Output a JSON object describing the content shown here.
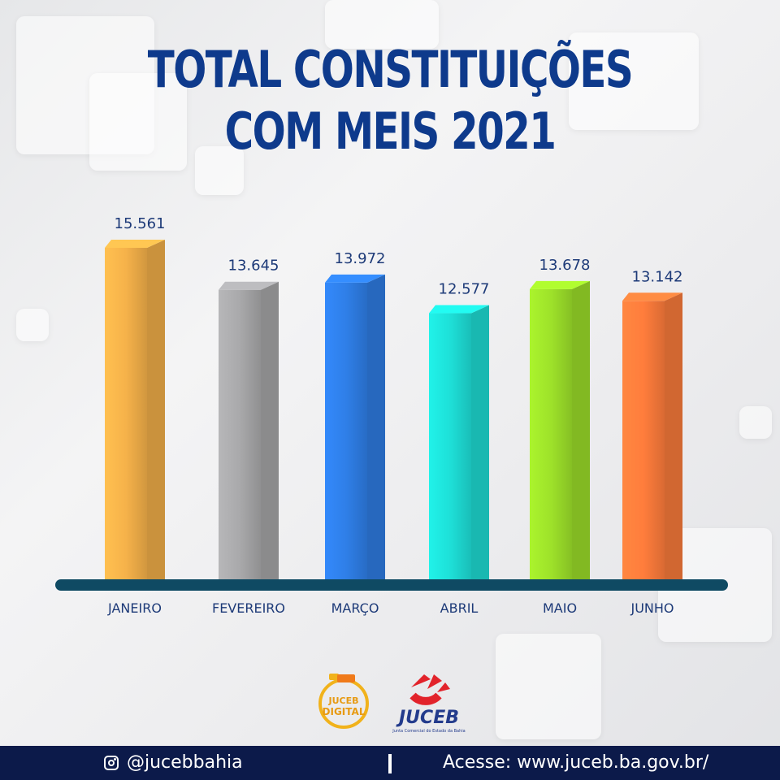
{
  "header": {
    "title_line1": "TOTAL CONSTITUIÇÕES",
    "title_line2": "COM MEIS 2021"
  },
  "chart_data": {
    "type": "bar",
    "categories": [
      "JANEIRO",
      "FEVEREIRO",
      "MARÇO",
      "ABRIL",
      "MAIO",
      "JUNHO"
    ],
    "values": [
      15561,
      13645,
      13972,
      12577,
      13678,
      13142
    ],
    "value_labels": [
      "15.561",
      "13.645",
      "13.972",
      "12.577",
      "13.678",
      "13.142"
    ],
    "colors": [
      "#f6b24a",
      "#a9a9ab",
      "#2f7fe8",
      "#1ee0d8",
      "#9ee22a",
      "#ff7d3c"
    ],
    "grid": false,
    "legend": "none"
  },
  "logos": {
    "digital_line1": "JUCEB",
    "digital_line2": "DIGITAL",
    "juceb_name": "JUCEB",
    "juceb_subtitle": "Junta Comercial do Estado da Bahia"
  },
  "footer": {
    "instagram_icon": "instagram-icon",
    "handle": "@jucebbahia",
    "website": "Acesse: www.juceb.ba.gov.br/"
  }
}
